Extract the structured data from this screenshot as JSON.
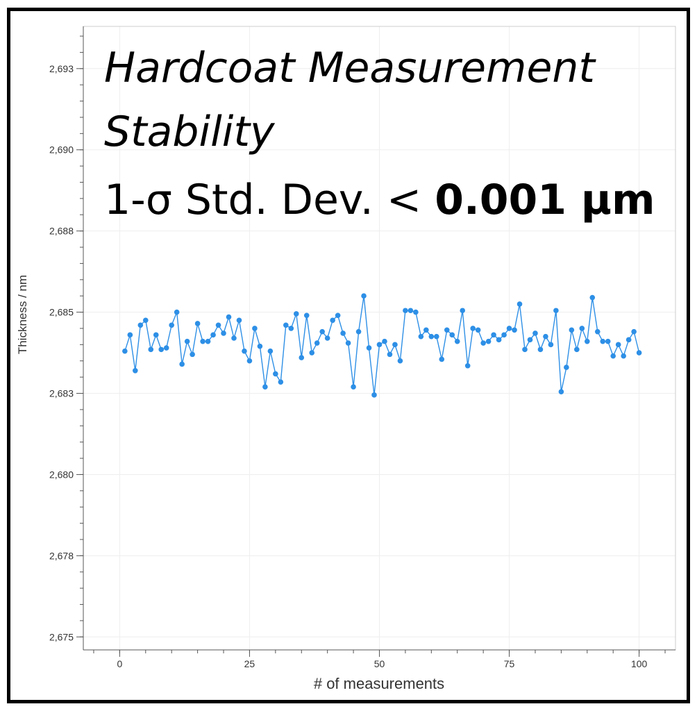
{
  "title": {
    "line1": "Hardcoat Measurement",
    "line2": "Stability",
    "line3_prefix": "1-σ Std. Dev. < ",
    "line3_bold": "0.001 µm"
  },
  "colors": {
    "series": "#2d8fe6",
    "grid": "#eeeeee",
    "axis": "#555555",
    "frame": "#000000"
  },
  "chart_data": {
    "type": "line",
    "title": "Hardcoat Measurement Stability",
    "subtitle": "1-σ Std. Dev. < 0.001 µm",
    "xlabel": "# of measurements",
    "ylabel": "Thickness / nm",
    "xlim": [
      -7,
      107
    ],
    "ylim": [
      2674.6,
      2693.8
    ],
    "xticks": [
      0,
      25,
      50,
      75,
      100
    ],
    "xtick_labels": [
      "0",
      "25",
      "50",
      "75",
      "100"
    ],
    "yticks": [
      2675,
      2677.5,
      2680,
      2682.5,
      2685,
      2687.5,
      2690,
      2692.5
    ],
    "ytick_labels": [
      "2,675",
      "2,678",
      "2,680",
      "2,683",
      "2,685",
      "2,688",
      "2,690",
      "2,693"
    ],
    "grid": true,
    "series": [
      {
        "marker": "circle",
        "x": [
          1,
          2,
          3,
          4,
          5,
          6,
          7,
          8,
          9,
          10,
          11,
          12,
          13,
          14,
          15,
          16,
          17,
          18,
          19,
          20,
          21,
          22,
          23,
          24,
          25,
          26,
          27,
          28,
          29,
          30,
          31,
          32,
          33,
          34,
          35,
          36,
          37,
          38,
          39,
          40,
          41,
          42,
          43,
          44,
          45,
          46,
          47,
          48,
          49,
          50,
          51,
          52,
          53,
          54,
          55,
          56,
          57,
          58,
          59,
          60,
          61,
          62,
          63,
          64,
          65,
          66,
          67,
          68,
          69,
          70,
          71,
          72,
          73,
          74,
          75,
          76,
          77,
          78,
          79,
          80,
          81,
          82,
          83,
          84,
          85,
          86,
          87,
          88,
          89,
          90,
          91,
          92,
          93,
          94,
          95,
          96,
          97,
          98,
          99,
          100
        ],
        "values": [
          2683.8,
          2684.3,
          2683.2,
          2684.6,
          2684.75,
          2683.85,
          2684.3,
          2683.85,
          2683.9,
          2684.6,
          2685,
          2683.4,
          2684.1,
          2683.7,
          2684.65,
          2684.1,
          2684.1,
          2684.3,
          2684.6,
          2684.35,
          2684.85,
          2684.2,
          2684.75,
          2683.8,
          2683.5,
          2684.5,
          2683.95,
          2682.7,
          2683.8,
          2683.1,
          2682.85,
          2684.6,
          2684.5,
          2684.95,
          2683.6,
          2684.9,
          2683.75,
          2684.05,
          2684.4,
          2684.2,
          2684.75,
          2684.9,
          2684.35,
          2684.05,
          2682.7,
          2684.4,
          2685.5,
          2683.9,
          2682.45,
          2684,
          2684.1,
          2683.7,
          2684,
          2683.5,
          2685.05,
          2685.05,
          2685,
          2684.25,
          2684.45,
          2684.25,
          2684.25,
          2683.55,
          2684.45,
          2684.3,
          2684.1,
          2685.05,
          2683.35,
          2684.5,
          2684.45,
          2684.05,
          2684.1,
          2684.3,
          2684.15,
          2684.3,
          2684.5,
          2684.45,
          2685.25,
          2683.85,
          2684.15,
          2684.35,
          2683.85,
          2684.25,
          2684,
          2685.05,
          2682.55,
          2683.3,
          2684.45,
          2683.85,
          2684.5,
          2684.1,
          2685.45,
          2684.4,
          2684.1,
          2684.1,
          2683.65,
          2684,
          2683.65,
          2684.15,
          2684.4,
          2683.75
        ]
      }
    ]
  }
}
